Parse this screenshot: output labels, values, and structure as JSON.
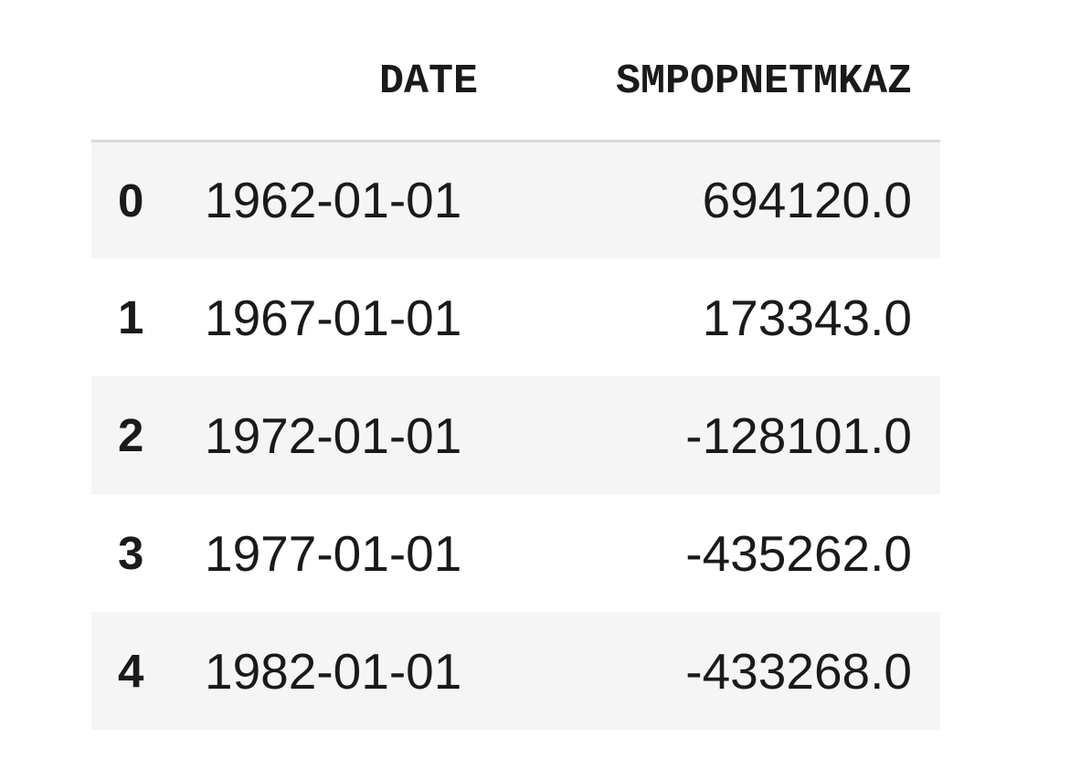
{
  "table": {
    "columns": [
      "",
      "DATE",
      "SMPOPNETMKAZ"
    ],
    "rows": [
      {
        "index": "0",
        "date": "1962-01-01",
        "value": "694120.0"
      },
      {
        "index": "1",
        "date": "1967-01-01",
        "value": "173343.0"
      },
      {
        "index": "2",
        "date": "1972-01-01",
        "value": "-128101.0"
      },
      {
        "index": "3",
        "date": "1977-01-01",
        "value": "-435262.0"
      },
      {
        "index": "4",
        "date": "1982-01-01",
        "value": "-433268.0"
      }
    ]
  },
  "colors": {
    "striped_row": "#f5f5f5",
    "header_rule": "#d9d9d9",
    "text": "#1a1a1a"
  }
}
